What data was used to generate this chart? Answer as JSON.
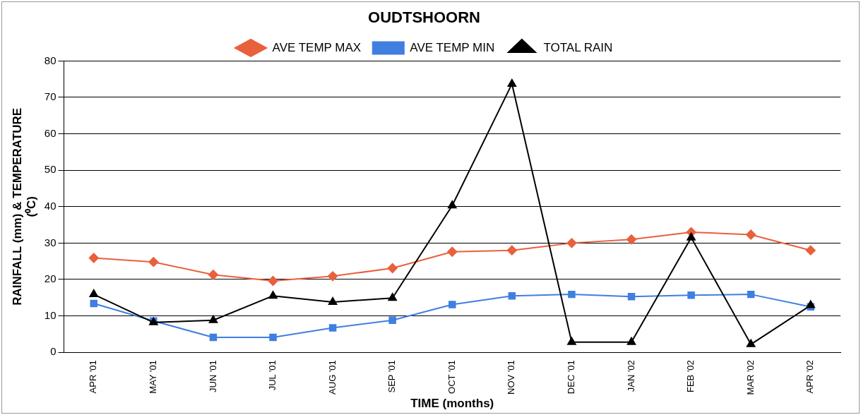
{
  "chart_data": {
    "type": "line",
    "title": "OUDTSHOORN",
    "xlabel": "TIME (months)",
    "ylabel": "RAINFALL (mm) & TEMPERATURE\n(⁰C)",
    "categories": [
      "APR '01",
      "MAY '01",
      "JUN '01",
      "JUL '01",
      "AUG '01",
      "SEP '01",
      "OCT '01",
      "NOV '01",
      "DEC '01",
      "JAN '02",
      "FEB '02",
      "MAR '02",
      "APR '02"
    ],
    "series": [
      {
        "name": "AVE TEMP MAX",
        "color": "#e8603c",
        "marker": "diamond",
        "values": [
          25.9,
          24.8,
          21.3,
          19.6,
          20.9,
          23.1,
          27.6,
          28,
          30,
          31,
          33,
          32.3,
          28
        ]
      },
      {
        "name": "AVE TEMP MIN",
        "color": "#3f7fe0",
        "marker": "square",
        "values": [
          13.4,
          8.6,
          4.1,
          4.1,
          6.7,
          8.8,
          13.1,
          15.5,
          15.9,
          15.3,
          15.7,
          15.9,
          12.5
        ]
      },
      {
        "name": "TOTAL RAIN",
        "color": "#000000",
        "marker": "triangle",
        "values": [
          15.9,
          8.2,
          8.8,
          15.5,
          13.8,
          14.9,
          40.3,
          73.7,
          2.8,
          2.8,
          31.5,
          2.2,
          12.9
        ]
      }
    ],
    "ylim": [
      0,
      80
    ],
    "yticks": [
      0,
      10,
      20,
      30,
      40,
      50,
      60,
      70,
      80
    ],
    "grid": "y",
    "legend": "top",
    "line_style": "solid"
  }
}
